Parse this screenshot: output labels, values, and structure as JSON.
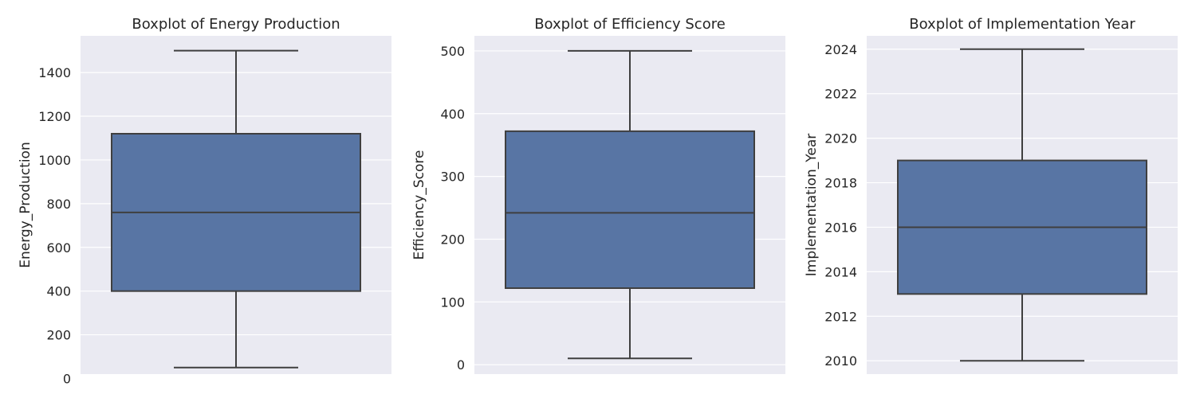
{
  "chart_data": [
    {
      "type": "box",
      "title": "Boxplot of Energy Production",
      "xlabel": "",
      "ylabel": "Energy_Production",
      "ylim": [
        20,
        1568
      ],
      "yticks": [
        0,
        200,
        400,
        600,
        800,
        1000,
        1200,
        1400
      ],
      "tick_labels": [
        "0",
        "200",
        "400",
        "600",
        "800",
        "1000",
        "1200",
        "1400"
      ],
      "box": {
        "whisker_low": 50,
        "q1": 400,
        "median": 760,
        "q3": 1120,
        "whisker_high": 1500
      }
    },
    {
      "type": "box",
      "title": "Boxplot of Efficiency Score",
      "xlabel": "",
      "ylabel": "Efficiency_Score",
      "ylim": [
        -15,
        524
      ],
      "yticks": [
        0,
        100,
        200,
        300,
        400,
        500
      ],
      "tick_labels": [
        "0",
        "100",
        "200",
        "300",
        "400",
        "500"
      ],
      "box": {
        "whisker_low": 10,
        "q1": 122,
        "median": 242,
        "q3": 372,
        "whisker_high": 500
      }
    },
    {
      "type": "box",
      "title": "Boxplot of Implementation Year",
      "xlabel": "",
      "ylabel": "Implementation_Year",
      "ylim": [
        2009.4,
        2024.6
      ],
      "yticks": [
        2010,
        2012,
        2014,
        2016,
        2018,
        2020,
        2022,
        2024
      ],
      "tick_labels": [
        "2010",
        "2012",
        "2014",
        "2016",
        "2018",
        "2020",
        "2022",
        "2024"
      ],
      "box": {
        "whisker_low": 2010,
        "q1": 2013,
        "median": 2016,
        "q3": 2019,
        "whisker_high": 2024
      }
    }
  ],
  "colors": {
    "plot_background": "#eaeaf2",
    "grid": "#ffffff",
    "box_fill": "#5875a4",
    "box_line": "#3f3f3f",
    "text": "#262626"
  }
}
